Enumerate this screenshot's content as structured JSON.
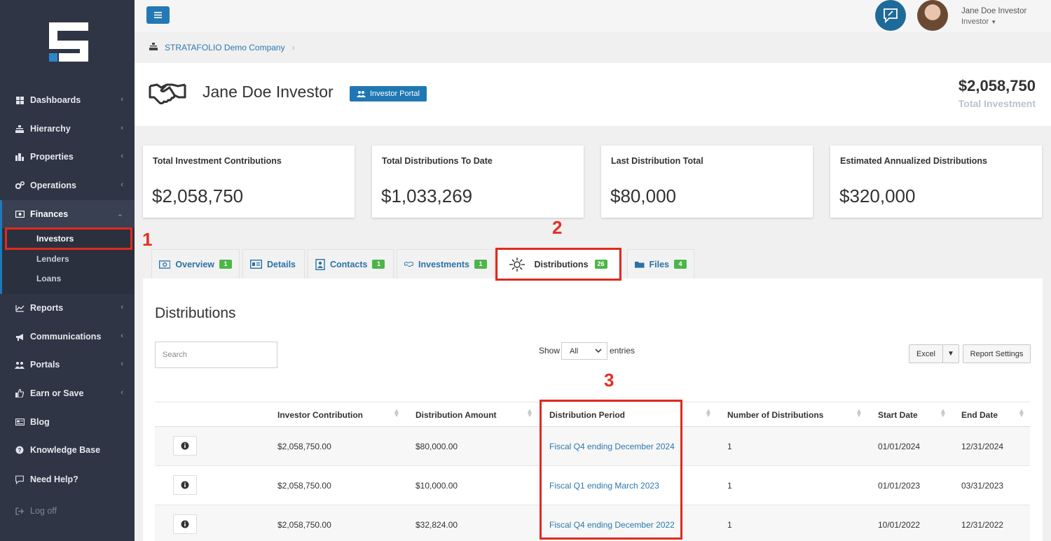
{
  "sidebar": {
    "items": [
      {
        "label": "Dashboards",
        "icon": "dashboard-icon",
        "has_children": true
      },
      {
        "label": "Hierarchy",
        "icon": "hierarchy-icon",
        "has_children": true
      },
      {
        "label": "Properties",
        "icon": "properties-icon",
        "has_children": true
      },
      {
        "label": "Operations",
        "icon": "operations-icon",
        "has_children": true
      },
      {
        "label": "Finances",
        "icon": "finances-icon",
        "has_children": true,
        "expanded": true
      },
      {
        "label": "Reports",
        "icon": "reports-icon",
        "has_children": true
      },
      {
        "label": "Communications",
        "icon": "megaphone-icon",
        "has_children": true
      },
      {
        "label": "Portals",
        "icon": "portals-icon",
        "has_children": true
      },
      {
        "label": "Earn or Save",
        "icon": "thumbs-up-icon",
        "has_children": true
      },
      {
        "label": "Blog",
        "icon": "blog-icon",
        "has_children": false
      },
      {
        "label": "Knowledge Base",
        "icon": "question-icon",
        "has_children": false
      },
      {
        "label": "Need Help?",
        "icon": "chat-help-icon",
        "has_children": false
      },
      {
        "label": "Log off",
        "icon": "logout-icon",
        "has_children": false
      }
    ],
    "finances_sub": [
      "Investors",
      "Lenders",
      "Loans"
    ],
    "selected_sub": "Investors"
  },
  "topbar": {
    "user_name": "Jane Doe Investor",
    "user_role": "Investor"
  },
  "breadcrumb": {
    "company": "STRATAFOLIO Demo Company",
    "separator": "›"
  },
  "header": {
    "title": "Jane Doe Investor",
    "portal_badge": "Investor Portal",
    "total_amount": "$2,058,750",
    "total_label": "Total Investment"
  },
  "cards": [
    {
      "title": "Total Investment Contributions",
      "value": "$2,058,750"
    },
    {
      "title": "Total Distributions To Date",
      "value": "$1,033,269"
    },
    {
      "title": "Last Distribution Total",
      "value": "$80,000"
    },
    {
      "title": "Estimated Annualized Distributions",
      "value": "$320,000"
    }
  ],
  "annotations": [
    "1",
    "2",
    "3"
  ],
  "tabs": [
    {
      "label": "Overview",
      "count": "1",
      "icon": "money-icon"
    },
    {
      "label": "Details",
      "count": "",
      "icon": "id-card-icon"
    },
    {
      "label": "Contacts",
      "count": "1",
      "icon": "contact-book-icon"
    },
    {
      "label": "Investments",
      "count": "1",
      "icon": "handshake-icon"
    },
    {
      "label": "Distributions",
      "count": "26",
      "icon": "distribution-icon",
      "active": true
    },
    {
      "label": "Files",
      "count": "4",
      "icon": "folder-icon"
    }
  ],
  "panel": {
    "title": "Distributions",
    "search_placeholder": "Search",
    "show_label": "Show",
    "show_value": "All",
    "entries_label": "entries",
    "excel_label": "Excel",
    "dropdown_caret": "▼",
    "report_settings_label": "Report Settings"
  },
  "table": {
    "columns": [
      "Investor Contribution",
      "Distribution Amount",
      "Distribution Period",
      "Number of Distributions",
      "Start Date",
      "End Date"
    ],
    "rows": [
      {
        "contribution": "$2,058,750.00",
        "amount": "$80,000.00",
        "period": "Fiscal Q4 ending December 2024",
        "count": "1",
        "start": "01/01/2024",
        "end": "12/31/2024"
      },
      {
        "contribution": "$2,058,750.00",
        "amount": "$10,000.00",
        "period": "Fiscal Q1 ending March 2023",
        "count": "1",
        "start": "01/01/2023",
        "end": "03/31/2023"
      },
      {
        "contribution": "$2,058,750.00",
        "amount": "$32,824.00",
        "period": "Fiscal Q4 ending December 2022",
        "count": "1",
        "start": "10/01/2022",
        "end": "12/31/2022"
      }
    ]
  },
  "colors": {
    "sidebar_bg": "#2f3544",
    "accent_blue": "#1f78b4",
    "badge_green": "#4db648",
    "annotation_red": "#e23124"
  }
}
